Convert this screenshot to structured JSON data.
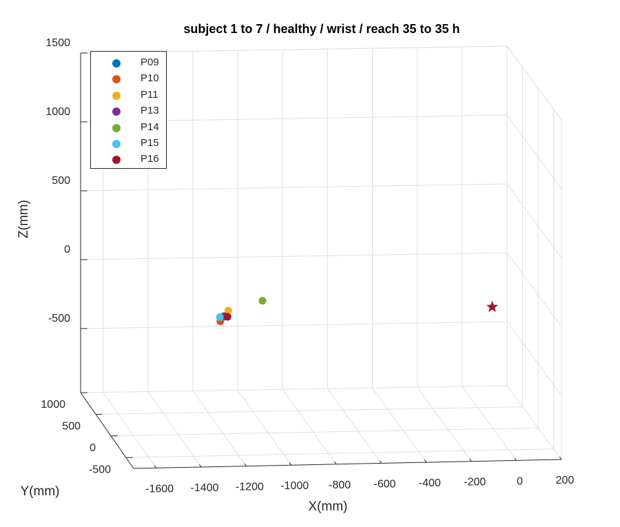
{
  "chart_data": {
    "type": "scatter3d",
    "title": "subject 1 to 7 / healthy / wrist / reach 35 to 35 h",
    "xlabel": "X(mm)",
    "ylabel": "Y(mm)",
    "zlabel": "Z(mm)",
    "xlim": [
      -1700,
      200
    ],
    "ylim": [
      -750,
      1000
    ],
    "zlim": [
      -1000,
      1500
    ],
    "grid": true,
    "legend_position": "top-left",
    "x_ticks": [
      "-1600",
      "-1400",
      "-1200",
      "-1000",
      "-800",
      "-600",
      "-400",
      "-200",
      "0",
      "200"
    ],
    "y_ticks": [
      "1000",
      "500",
      "0",
      "-500"
    ],
    "z_ticks": [
      "1500",
      "1000",
      "500",
      "0",
      "-500"
    ],
    "series": [
      {
        "name": "P09",
        "color": "#0072BD",
        "x": -1195,
        "y": 40,
        "z": -130
      },
      {
        "name": "P10",
        "color": "#D95319",
        "x": -1200,
        "y": 100,
        "z": -180
      },
      {
        "name": "P11",
        "color": "#EDB120",
        "x": -1170,
        "y": 60,
        "z": -90
      },
      {
        "name": "P13",
        "color": "#7E2F8E",
        "x": -1190,
        "y": 45,
        "z": -125
      },
      {
        "name": "P14",
        "color": "#77AC30",
        "x": -1030,
        "y": -30,
        "z": 5
      },
      {
        "name": "P15",
        "color": "#4DBEEE",
        "x": -1210,
        "y": 40,
        "z": -130
      },
      {
        "name": "P16",
        "color": "#A2142F",
        "x": -1175,
        "y": 45,
        "z": -130
      }
    ],
    "target_marker": {
      "shape": "star",
      "color": "#A2142F",
      "x": 0,
      "y": 30,
      "z": -90
    }
  }
}
